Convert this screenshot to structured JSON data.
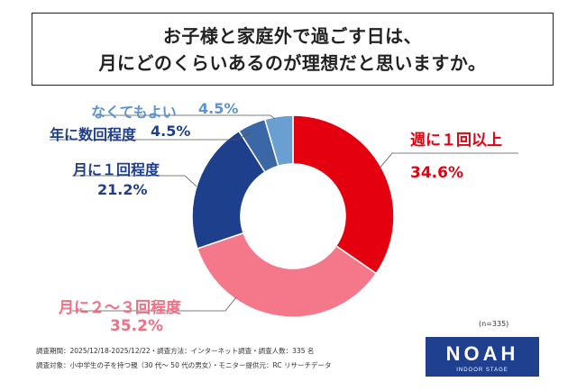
{
  "title": {
    "line1": "お子様と家庭外で過ごす日は、",
    "line2": "月にどのくらいあるのが理想だと思いますか。"
  },
  "chart_data": {
    "type": "pie",
    "series": [
      {
        "name": "週に１回以上",
        "value": 34.6,
        "value_label": "34.6%",
        "color": "#e5000f"
      },
      {
        "name": "月に２～３回程度",
        "value": 35.2,
        "value_label": "35.2%",
        "color": "#f4778a"
      },
      {
        "name": "月に１回程度",
        "value": 21.2,
        "value_label": "21.2%",
        "color": "#1d3f8c"
      },
      {
        "name": "年に数回程度",
        "value": 4.5,
        "value_label": "4.5%",
        "color": "#3b67a6"
      },
      {
        "name": "なくてもよい",
        "value": 4.5,
        "value_label": "4.5%",
        "color": "#6a9fd1"
      }
    ],
    "style": "donut"
  },
  "sample_note": "(n=335)",
  "footer": {
    "line1": "調査期間：2025/12/18-2025/12/22・調査方法：インターネット調査・調査人数：335 名",
    "line2": "調査対象：小中学生の子を持つ親（30 代～ 50 代の男女）・モニター提供元：RC リサーチデータ"
  },
  "logo": {
    "main": "NOAH",
    "sub": "INDOOR STAGE",
    "color": "#1f3f8f"
  }
}
